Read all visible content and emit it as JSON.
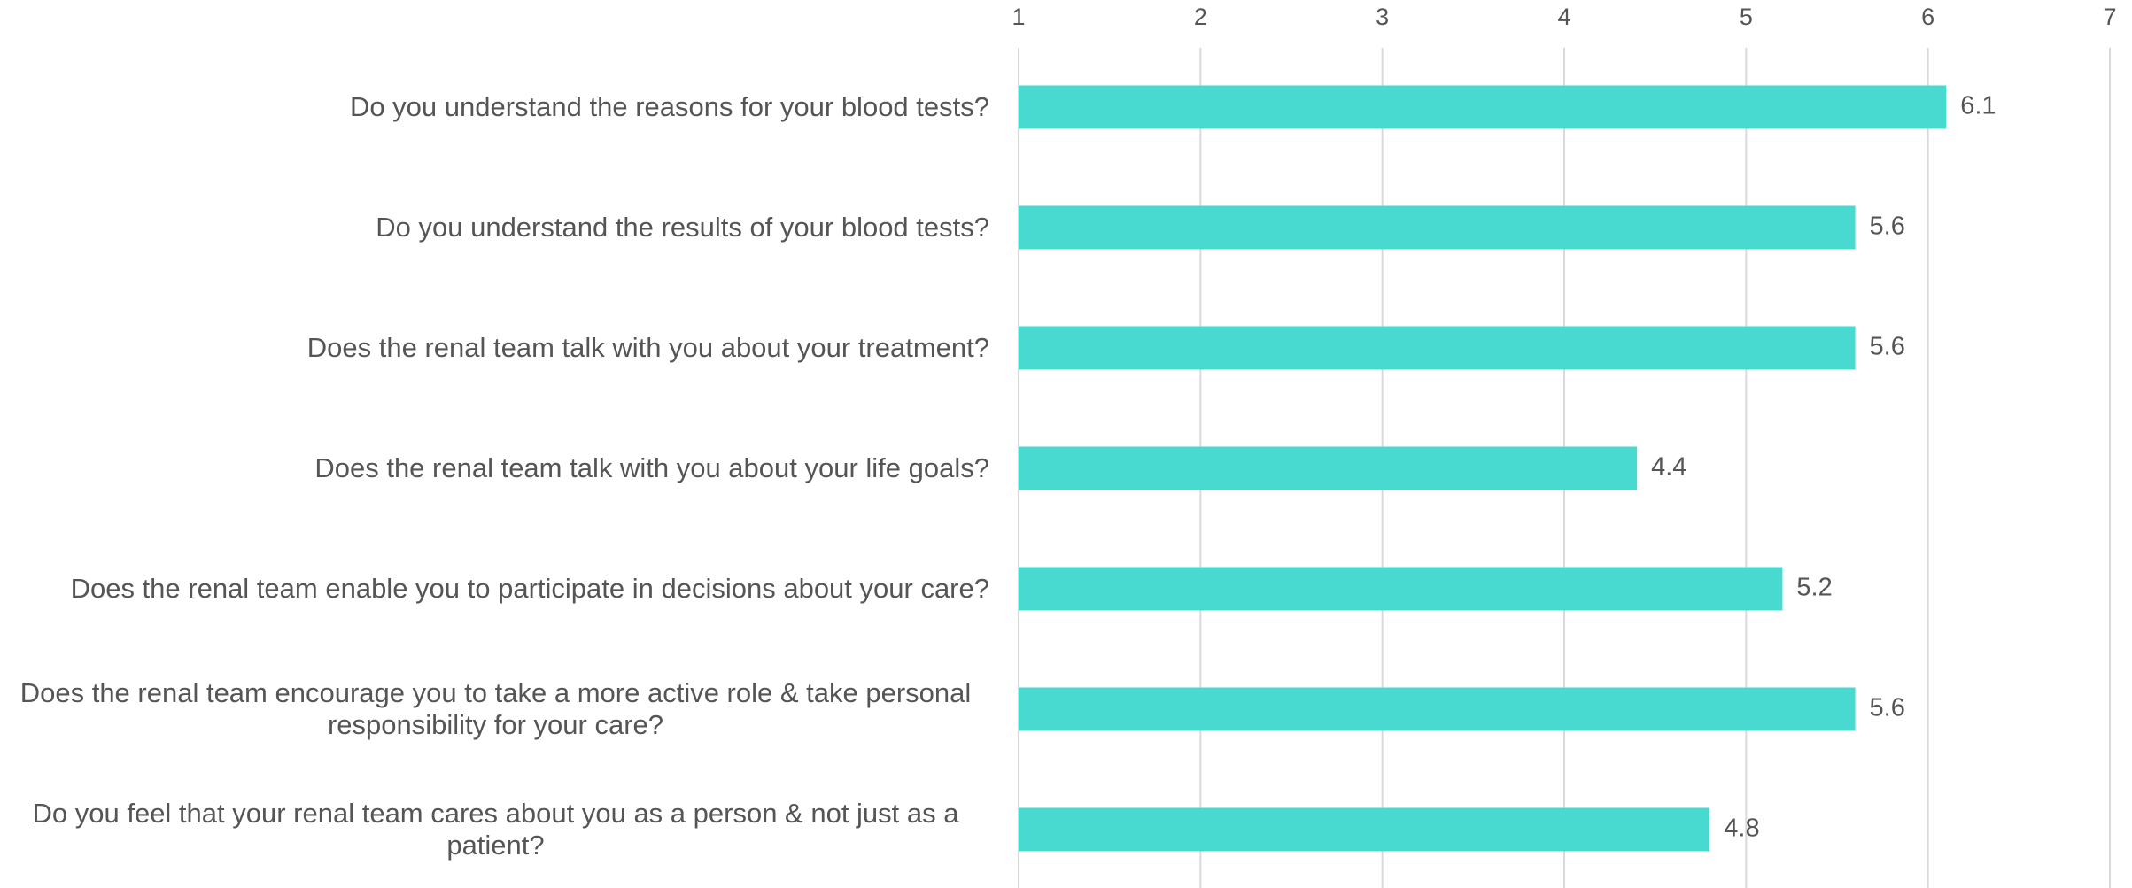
{
  "chart_data": {
    "type": "bar",
    "orientation": "horizontal",
    "categories": [
      "Do you understand the reasons for your blood tests?",
      "Do you understand the results of your blood tests?",
      "Does the renal team talk with you about your treatment?",
      "Does the renal team talk with you about your life goals?",
      "Does the renal team enable you to participate in decisions about your care?",
      "Does the renal team encourage you to take a more active role & take personal responsibility for your care?",
      "Do you feel that your renal team cares about you as a person & not just as a patient?"
    ],
    "values": [
      6.1,
      5.6,
      5.6,
      4.4,
      5.2,
      5.6,
      4.8
    ],
    "color": "#48d9d1",
    "xlim": [
      1,
      7
    ],
    "xticks": [
      1,
      2,
      3,
      4,
      5,
      6,
      7
    ],
    "grid": true
  }
}
